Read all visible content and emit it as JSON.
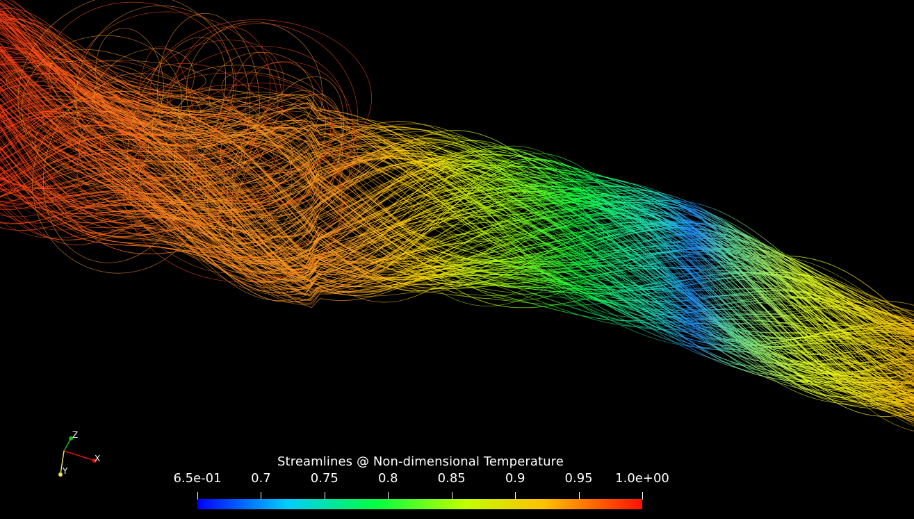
{
  "render": {
    "background": "#000000",
    "colormap": [
      "#0000ff",
      "#00ffff",
      "#00ff00",
      "#ffff00",
      "#ff8000",
      "#ff0000"
    ]
  },
  "legend": {
    "title": "Streamlines @ Non-dimensional Temperature",
    "ticks": [
      "6.5e-01",
      "0.7",
      "0.75",
      "0.8",
      "0.85",
      "0.9",
      "0.95",
      "1.0e+00"
    ],
    "range": [
      0.65,
      1.0
    ]
  },
  "axes": {
    "x_label": "X",
    "y_label": "Y",
    "z_label": "Z",
    "x_color": "#e01010",
    "y_color": "#e8e060",
    "z_color": "#10c010"
  }
}
